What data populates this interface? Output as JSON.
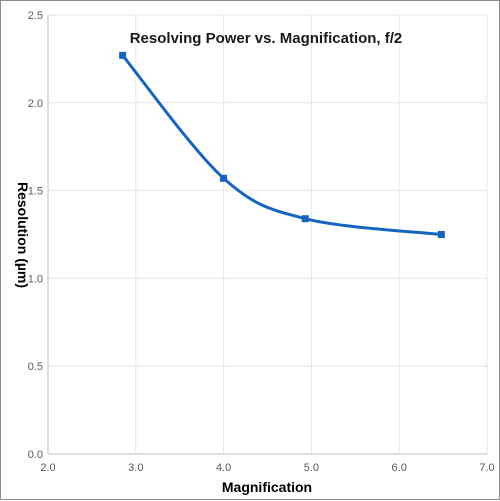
{
  "chart_data": {
    "type": "line",
    "title": "Resolving Power vs. Magnification, f/2",
    "xlabel": "Magnification",
    "ylabel": "Resolution (µm)",
    "xlim": [
      2.0,
      7.0
    ],
    "ylim": [
      0.0,
      2.5
    ],
    "x_ticks": [
      "2.0",
      "3.0",
      "4.0",
      "5.0",
      "6.0",
      "7.0"
    ],
    "y_ticks": [
      "0.0",
      "0.5",
      "1.0",
      "1.5",
      "2.0",
      "2.5"
    ],
    "grid": true,
    "legend": "none",
    "smooth": true,
    "marker": "square",
    "series": [
      {
        "x": [
          2.85,
          4.0,
          4.93,
          6.48
        ],
        "y": [
          2.27,
          1.57,
          1.34,
          1.25
        ]
      }
    ]
  },
  "colors": {
    "series": "#1565c0",
    "grid": "#e6e6e6",
    "axis": "#bfbfbf"
  }
}
